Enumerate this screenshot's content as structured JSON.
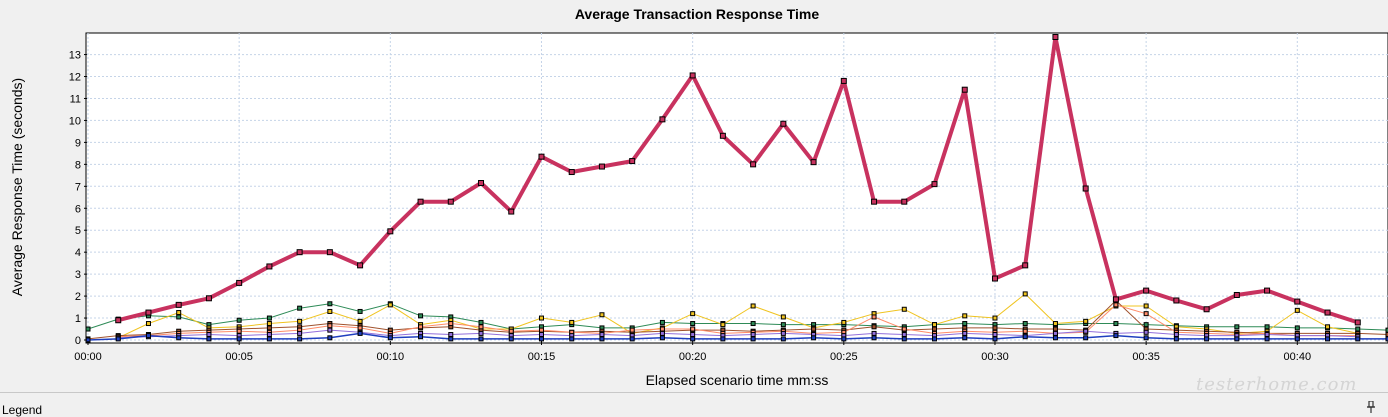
{
  "chart_data": {
    "type": "line",
    "title": "Average Transaction Response Time",
    "xlabel": "Elapsed scenario time mm:ss",
    "ylabel": "Average Response Time (seconds)",
    "xlim": [
      0,
      43
    ],
    "ylim": [
      0,
      13.8
    ],
    "x_ticks": [
      "00:00",
      "00:05",
      "00:10",
      "00:15",
      "00:20",
      "00:25",
      "00:30",
      "00:35",
      "00:40"
    ],
    "y_ticks": [
      "0",
      "1",
      "2",
      "3",
      "4",
      "5",
      "6",
      "7",
      "8",
      "9",
      "10",
      "11",
      "12",
      "13"
    ],
    "grid": true,
    "series": [
      {
        "color": "#c8325f",
        "width": 4,
        "x": [
          1,
          2,
          3,
          4,
          5,
          6,
          7,
          8,
          9,
          10,
          11,
          12,
          13,
          14,
          15,
          16,
          17,
          18,
          19,
          20,
          21,
          22,
          23,
          24,
          25,
          26,
          27,
          28,
          29,
          30,
          31,
          32,
          33,
          34,
          35,
          36,
          37,
          38,
          39,
          40,
          41,
          42
        ],
        "y": [
          0.9,
          1.25,
          1.6,
          1.9,
          2.6,
          3.35,
          4.0,
          4.0,
          3.4,
          4.95,
          6.3,
          6.3,
          7.15,
          5.85,
          8.35,
          7.65,
          7.9,
          8.15,
          10.05,
          12.05,
          9.3,
          8.0,
          9.85,
          8.1,
          11.8,
          6.3,
          6.3,
          7.1,
          11.4,
          2.8,
          3.4,
          13.8,
          6.9,
          1.85,
          2.25,
          1.8,
          1.4,
          2.05,
          2.25,
          1.75,
          1.25,
          0.8
        ]
      },
      {
        "color": "#2e8b57",
        "width": 1,
        "x": [
          0,
          1,
          2,
          3,
          4,
          5,
          6,
          7,
          8,
          9,
          10,
          11,
          12,
          13,
          14,
          15,
          16,
          17,
          18,
          19,
          20,
          21,
          22,
          23,
          24,
          25,
          26,
          27,
          28,
          29,
          30,
          31,
          32,
          33,
          34,
          35,
          36,
          37,
          38,
          39,
          40,
          41,
          42,
          43
        ],
        "y": [
          0.5,
          0.95,
          1.1,
          1.05,
          0.7,
          0.9,
          1.0,
          1.45,
          1.65,
          1.3,
          1.65,
          1.1,
          1.05,
          0.8,
          0.5,
          0.6,
          0.7,
          0.55,
          0.55,
          0.8,
          0.75,
          0.75,
          0.75,
          0.7,
          0.7,
          0.7,
          0.65,
          0.6,
          0.7,
          0.75,
          0.7,
          0.75,
          0.7,
          0.75,
          0.75,
          0.7,
          0.65,
          0.6,
          0.6,
          0.6,
          0.55,
          0.55,
          0.5,
          0.45
        ]
      },
      {
        "color": "#f0c420",
        "width": 1,
        "x": [
          1,
          2,
          3,
          4,
          5,
          6,
          7,
          8,
          9,
          10,
          11,
          12,
          13,
          14,
          15,
          16,
          17,
          18,
          19,
          20,
          21,
          22,
          23,
          24,
          25,
          26,
          27,
          28,
          29,
          30,
          31,
          32,
          33,
          34,
          35,
          36,
          37,
          38,
          39,
          40,
          41,
          42
        ],
        "y": [
          0.1,
          0.75,
          1.25,
          0.55,
          0.6,
          0.75,
          0.85,
          1.3,
          0.85,
          1.6,
          0.7,
          0.9,
          0.5,
          0.5,
          1.0,
          0.8,
          1.15,
          0.3,
          0.55,
          1.2,
          0.7,
          1.55,
          1.05,
          0.55,
          0.8,
          1.2,
          1.4,
          0.7,
          1.1,
          1.0,
          2.1,
          0.75,
          0.85,
          1.55,
          1.55,
          0.6,
          0.5,
          0.3,
          0.4,
          1.35,
          0.6,
          0.3
        ]
      },
      {
        "color": "#a0522d",
        "width": 1,
        "x": [
          0,
          1,
          2,
          3,
          4,
          5,
          6,
          7,
          8,
          9,
          10,
          11,
          12,
          13,
          14,
          15,
          16,
          17,
          18,
          19,
          20,
          21,
          22,
          23,
          24,
          25,
          26,
          27,
          28,
          29,
          30,
          31,
          32,
          33,
          34,
          35,
          36,
          37,
          38,
          39,
          40,
          41,
          42,
          43
        ],
        "y": [
          0.05,
          0.2,
          0.25,
          0.4,
          0.45,
          0.5,
          0.55,
          0.6,
          0.75,
          0.65,
          0.45,
          0.55,
          0.6,
          0.45,
          0.35,
          0.4,
          0.35,
          0.4,
          0.35,
          0.4,
          0.45,
          0.45,
          0.4,
          0.45,
          0.5,
          0.45,
          0.6,
          0.45,
          0.5,
          0.55,
          0.55,
          0.5,
          0.5,
          0.45,
          1.8,
          0.5,
          0.45,
          0.4,
          0.35,
          0.3,
          0.3,
          0.3,
          0.3,
          0.25
        ]
      },
      {
        "color": "#ff8c69",
        "width": 1,
        "x": [
          1,
          2,
          3,
          4,
          5,
          6,
          7,
          8,
          9,
          10,
          11,
          12,
          13,
          14,
          15,
          16,
          17,
          18,
          19,
          20,
          21,
          22,
          23,
          24,
          25,
          26,
          27,
          28,
          29,
          30,
          31,
          32,
          33,
          34,
          35,
          36,
          37,
          38,
          39,
          40,
          41,
          42
        ],
        "y": [
          0.15,
          0.2,
          0.3,
          0.35,
          0.4,
          0.35,
          0.45,
          0.65,
          0.55,
          0.3,
          0.6,
          0.75,
          0.6,
          0.4,
          0.45,
          0.35,
          0.3,
          0.45,
          0.5,
          0.5,
          0.3,
          0.35,
          0.4,
          0.3,
          0.35,
          1.05,
          0.5,
          0.3,
          0.4,
          0.35,
          0.4,
          0.3,
          0.35,
          1.6,
          1.2,
          0.35,
          0.3,
          0.25,
          0.3,
          0.2,
          0.2,
          0.2
        ]
      },
      {
        "color": "#9370db",
        "width": 1,
        "x": [
          1,
          2,
          3,
          4,
          5,
          6,
          7,
          8,
          9,
          10,
          11,
          12,
          13,
          14,
          15,
          16,
          17,
          18,
          19,
          20,
          21,
          22,
          23,
          24,
          25,
          26,
          27,
          28,
          29,
          30,
          31,
          32,
          33,
          34,
          35,
          36,
          37,
          38,
          39,
          40,
          41,
          42
        ],
        "y": [
          0.1,
          0.15,
          0.2,
          0.25,
          0.2,
          0.25,
          0.3,
          0.45,
          0.35,
          0.2,
          0.3,
          0.25,
          0.3,
          0.2,
          0.25,
          0.2,
          0.25,
          0.2,
          0.3,
          0.25,
          0.2,
          0.25,
          0.3,
          0.25,
          0.2,
          0.3,
          0.25,
          0.2,
          0.3,
          0.25,
          0.2,
          0.3,
          0.4,
          0.3,
          0.35,
          0.25,
          0.2,
          0.2,
          0.25,
          0.2,
          0.2,
          0.15
        ]
      },
      {
        "color": "#1f3fbf",
        "width": 1.5,
        "x": [
          0,
          1,
          2,
          3,
          4,
          5,
          6,
          7,
          8,
          9,
          10,
          11,
          12,
          13,
          14,
          15,
          16,
          17,
          18,
          19,
          20,
          21,
          22,
          23,
          24,
          25,
          26,
          27,
          28,
          29,
          30,
          31,
          32,
          33,
          34,
          35,
          36,
          37,
          38,
          39,
          40,
          41,
          42,
          43
        ],
        "y": [
          0.0,
          0.05,
          0.2,
          0.1,
          0.05,
          0.05,
          0.05,
          0.05,
          0.1,
          0.3,
          0.1,
          0.15,
          0.05,
          0.05,
          0.05,
          0.05,
          0.05,
          0.05,
          0.05,
          0.1,
          0.05,
          0.05,
          0.05,
          0.05,
          0.1,
          0.05,
          0.1,
          0.05,
          0.05,
          0.1,
          0.05,
          0.15,
          0.1,
          0.1,
          0.2,
          0.1,
          0.05,
          0.05,
          0.05,
          0.05,
          0.05,
          0.05,
          0.05,
          0.05
        ]
      }
    ]
  },
  "legend": {
    "label": "Legend"
  },
  "watermark": "testerhome.com"
}
